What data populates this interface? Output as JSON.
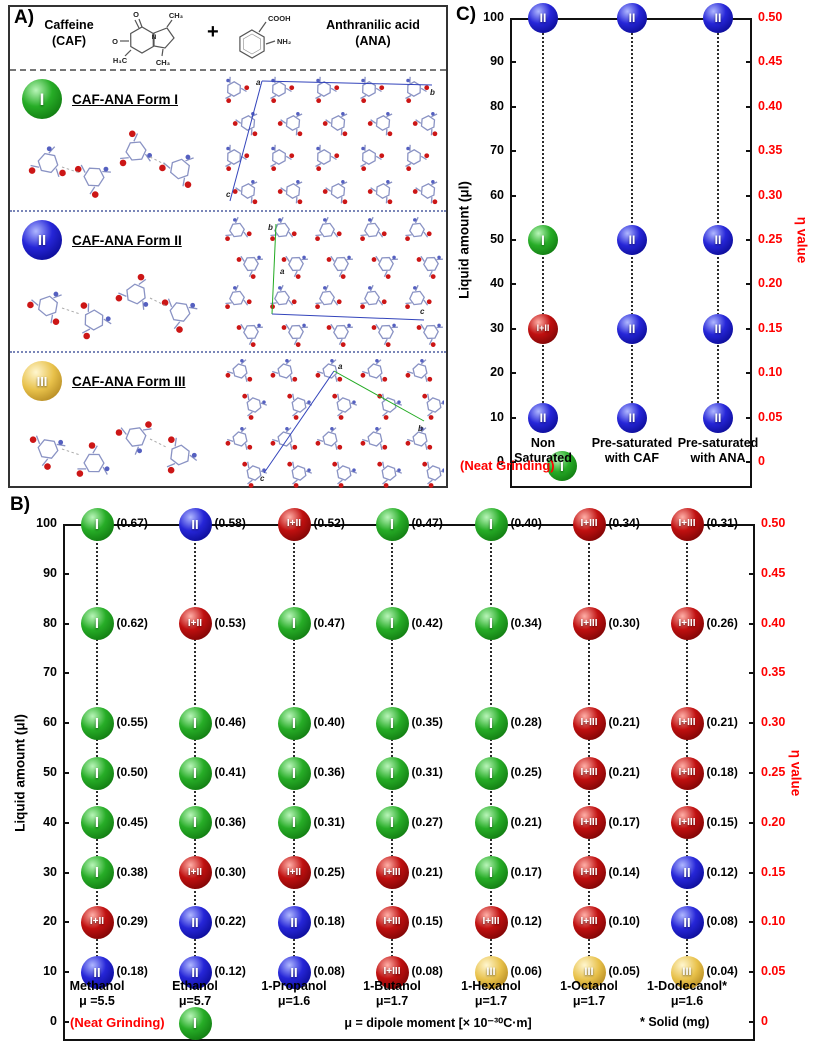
{
  "panels": {
    "a_label": "A)",
    "b_label": "B)",
    "c_label": "C)"
  },
  "colors": {
    "form_I_green": "#1f9e1f",
    "form_II_blue": "#2222cc",
    "form_III_gold": "#dfb64a",
    "mixture_red": "#b40000",
    "eta_axis_red": "#ff0000",
    "neat_grinding_red": "#ff0000"
  },
  "form_colors": {
    "I": "green",
    "II": "blue",
    "III": "gold",
    "I+II": "red",
    "I+III": "red"
  },
  "panel_a": {
    "caffeine_name": "Caffeine",
    "caffeine_abbr": "(CAF)",
    "plus": "+",
    "ana_name": "Anthranilic acid",
    "ana_abbr": "(ANA)",
    "chem": {
      "cooh": "COOH",
      "nh2": "NH₂",
      "o": "O",
      "n": "N",
      "h3c": "H₃C",
      "ch3": "CH₃"
    },
    "cell_labels": [
      "a",
      "b",
      "c"
    ],
    "forms": [
      {
        "symbol": "I",
        "title": "CAF-ANA Form I"
      },
      {
        "symbol": "II",
        "title": "CAF-ANA Form II"
      },
      {
        "symbol": "III",
        "title": "CAF-ANA Form III"
      }
    ]
  },
  "chart_data": [
    {
      "id": "C",
      "type": "scatter",
      "ylabel_left": "Liquid amount (μl)",
      "ylabel_right": "η value",
      "ylim": [
        0,
        100
      ],
      "left_ticks": [
        100,
        90,
        80,
        70,
        60,
        50,
        40,
        30,
        20,
        10,
        0
      ],
      "right_ticks": [
        "0.50",
        "0.45",
        "0.40",
        "0.35",
        "0.30",
        "0.25",
        "0.20",
        "0.15",
        "0.10",
        "0.05",
        "0"
      ],
      "columns": [
        {
          "label": "Non\nSaturated",
          "points": [
            {
              "y": 100,
              "form": "II"
            },
            {
              "y": 50,
              "form": "I"
            },
            {
              "y": 30,
              "form": "I+II"
            },
            {
              "y": 10,
              "form": "II"
            }
          ]
        },
        {
          "label": "Pre-saturated\nwith CAF",
          "points": [
            {
              "y": 100,
              "form": "II"
            },
            {
              "y": 50,
              "form": "II"
            },
            {
              "y": 30,
              "form": "II"
            },
            {
              "y": 10,
              "form": "II"
            }
          ]
        },
        {
          "label": "Pre-saturated\nwith ANA",
          "points": [
            {
              "y": 100,
              "form": "II"
            },
            {
              "y": 50,
              "form": "II"
            },
            {
              "y": 30,
              "form": "II"
            },
            {
              "y": 10,
              "form": "II"
            }
          ]
        }
      ],
      "neat": {
        "label": "(Neat Grinding)",
        "form": "I"
      }
    },
    {
      "id": "B",
      "type": "scatter",
      "ylabel_left": "Liquid amount (μl)",
      "ylabel_right": "η value",
      "ylim": [
        0,
        100
      ],
      "left_ticks": [
        100,
        90,
        80,
        70,
        60,
        50,
        40,
        30,
        20,
        10,
        0
      ],
      "right_ticks": [
        "0.50",
        "0.45",
        "0.40",
        "0.35",
        "0.30",
        "0.25",
        "0.20",
        "0.15",
        "0.10",
        "0.05",
        "0"
      ],
      "columns": [
        {
          "name": "Methanol",
          "mu": "μ =5.5",
          "points": [
            {
              "y": 100,
              "form": "I",
              "eta": "(0.67)"
            },
            {
              "y": 80,
              "form": "I",
              "eta": "(0.62)"
            },
            {
              "y": 60,
              "form": "I",
              "eta": "(0.55)"
            },
            {
              "y": 50,
              "form": "I",
              "eta": "(0.50)"
            },
            {
              "y": 40,
              "form": "I",
              "eta": "(0.45)"
            },
            {
              "y": 30,
              "form": "I",
              "eta": "(0.38)"
            },
            {
              "y": 20,
              "form": "I+II",
              "eta": "(0.29)"
            },
            {
              "y": 10,
              "form": "II",
              "eta": "(0.18)"
            }
          ]
        },
        {
          "name": "Ethanol",
          "mu": "μ=5.7",
          "points": [
            {
              "y": 100,
              "form": "II",
              "eta": "(0.58)"
            },
            {
              "y": 80,
              "form": "I+II",
              "eta": "(0.53)"
            },
            {
              "y": 60,
              "form": "I",
              "eta": "(0.46)"
            },
            {
              "y": 50,
              "form": "I",
              "eta": "(0.41)"
            },
            {
              "y": 40,
              "form": "I",
              "eta": "(0.36)"
            },
            {
              "y": 30,
              "form": "I+II",
              "eta": "(0.30)"
            },
            {
              "y": 20,
              "form": "II",
              "eta": "(0.22)"
            },
            {
              "y": 10,
              "form": "II",
              "eta": "(0.12)"
            }
          ]
        },
        {
          "name": "1-Propanol",
          "mu": "μ=1.6",
          "points": [
            {
              "y": 100,
              "form": "I+II",
              "eta": "(0.52)"
            },
            {
              "y": 80,
              "form": "I",
              "eta": "(0.47)"
            },
            {
              "y": 60,
              "form": "I",
              "eta": "(0.40)"
            },
            {
              "y": 50,
              "form": "I",
              "eta": "(0.36)"
            },
            {
              "y": 40,
              "form": "I",
              "eta": "(0.31)"
            },
            {
              "y": 30,
              "form": "I+II",
              "eta": "(0.25)"
            },
            {
              "y": 20,
              "form": "II",
              "eta": "(0.18)"
            },
            {
              "y": 10,
              "form": "II",
              "eta": "(0.08)"
            }
          ]
        },
        {
          "name": "1-Butanol",
          "mu": "μ=1.7",
          "points": [
            {
              "y": 100,
              "form": "I",
              "eta": "(0.47)"
            },
            {
              "y": 80,
              "form": "I",
              "eta": "(0.42)"
            },
            {
              "y": 60,
              "form": "I",
              "eta": "(0.35)"
            },
            {
              "y": 50,
              "form": "I",
              "eta": "(0.31)"
            },
            {
              "y": 40,
              "form": "I",
              "eta": "(0.27)"
            },
            {
              "y": 30,
              "form": "I+III",
              "eta": "(0.21)"
            },
            {
              "y": 20,
              "form": "I+III",
              "eta": "(0.15)"
            },
            {
              "y": 10,
              "form": "I+III",
              "eta": "(0.08)"
            }
          ]
        },
        {
          "name": "1-Hexanol",
          "mu": "μ=1.7",
          "points": [
            {
              "y": 100,
              "form": "I",
              "eta": "(0.40)"
            },
            {
              "y": 80,
              "form": "I",
              "eta": "(0.34)"
            },
            {
              "y": 60,
              "form": "I",
              "eta": "(0.28)"
            },
            {
              "y": 50,
              "form": "I",
              "eta": "(0.25)"
            },
            {
              "y": 40,
              "form": "I",
              "eta": "(0.21)"
            },
            {
              "y": 30,
              "form": "I",
              "eta": "(0.17)"
            },
            {
              "y": 20,
              "form": "I+III",
              "eta": "(0.12)"
            },
            {
              "y": 10,
              "form": "III",
              "eta": "(0.06)"
            }
          ]
        },
        {
          "name": "1-Octanol",
          "mu": "μ=1.7",
          "points": [
            {
              "y": 100,
              "form": "I+III",
              "eta": "(0.34)"
            },
            {
              "y": 80,
              "form": "I+III",
              "eta": "(0.30)"
            },
            {
              "y": 60,
              "form": "I+III",
              "eta": "(0.21)"
            },
            {
              "y": 50,
              "form": "I+III",
              "eta": "(0.21)"
            },
            {
              "y": 40,
              "form": "I+III",
              "eta": "(0.17)"
            },
            {
              "y": 30,
              "form": "I+III",
              "eta": "(0.14)"
            },
            {
              "y": 20,
              "form": "I+III",
              "eta": "(0.10)"
            },
            {
              "y": 10,
              "form": "III",
              "eta": "(0.05)"
            }
          ]
        },
        {
          "name": "1-Dodecanol*",
          "mu": "μ=1.6",
          "points": [
            {
              "y": 100,
              "form": "I+III",
              "eta": "(0.31)"
            },
            {
              "y": 80,
              "form": "I+III",
              "eta": "(0.26)"
            },
            {
              "y": 60,
              "form": "I+III",
              "eta": "(0.21)"
            },
            {
              "y": 50,
              "form": "I+III",
              "eta": "(0.18)"
            },
            {
              "y": 40,
              "form": "I+III",
              "eta": "(0.15)"
            },
            {
              "y": 30,
              "form": "II",
              "eta": "(0.12)"
            },
            {
              "y": 20,
              "form": "II",
              "eta": "(0.08)"
            },
            {
              "y": 10,
              "form": "III",
              "eta": "(0.04)"
            }
          ]
        }
      ],
      "neat": {
        "label": "(Neat Grinding)",
        "form": "I"
      },
      "notes": {
        "dipole": "μ = dipole moment [× 10⁻³⁰C·m]",
        "solid": "* Solid (mg)"
      }
    }
  ]
}
